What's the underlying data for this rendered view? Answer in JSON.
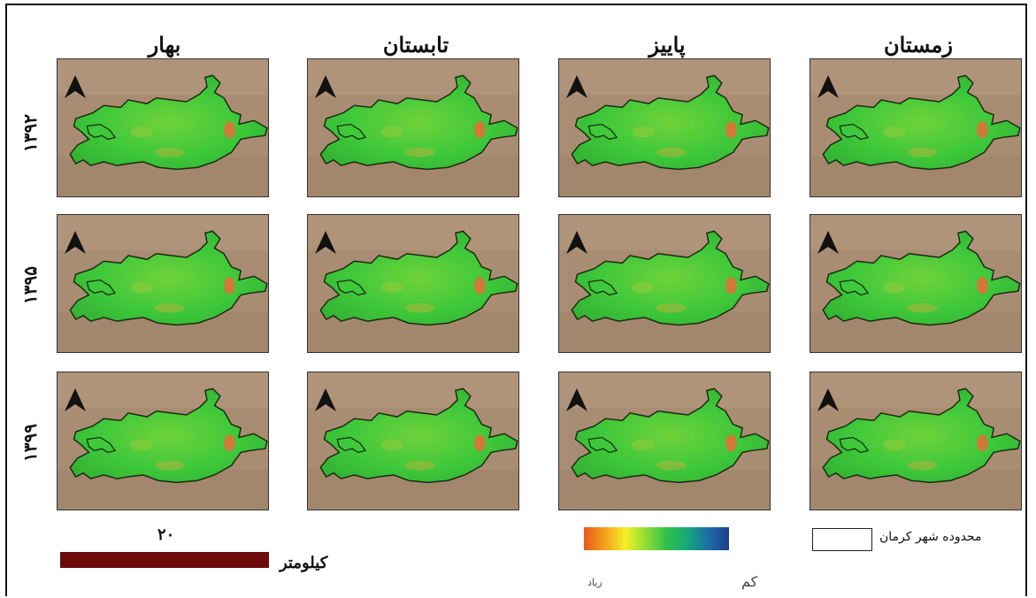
{
  "seasons": [
    "بهار",
    "تابستان",
    "پاییز",
    "زمستان"
  ],
  "years": [
    "۱۳۹۲",
    "۱۳۹۵",
    "۱۳۹۹"
  ],
  "scale": {
    "number": "۲۰",
    "unit_label": "کیلومتر"
  },
  "color_ramp": {
    "low_label": "زیاد",
    "high_label": "کم",
    "colors": [
      "#e85a1a",
      "#f3a01c",
      "#f6ee28",
      "#8fdc36",
      "#2fbf4a",
      "#16a87a",
      "#1d6da8",
      "#1f3f8a"
    ]
  },
  "boundary_legend": {
    "label": "محدوده شهر کرمان"
  },
  "map_colors": {
    "background": "#a98d72",
    "city_fill": "#3ec83a",
    "hotspot": "#e0703a",
    "north_arrow": "#111111"
  }
}
